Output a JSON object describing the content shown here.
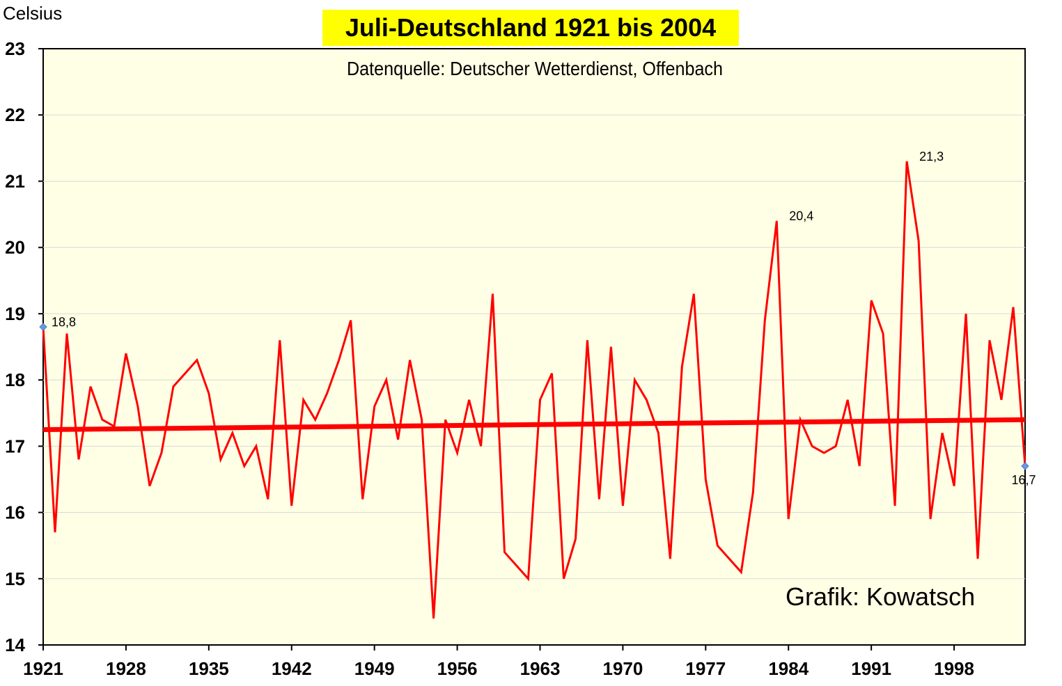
{
  "chart_data": {
    "type": "line",
    "title": "Juli-Deutschland  1921 bis 2004",
    "subtitle": "Datenquelle: Deutscher Wetterdienst, Offenbach",
    "ylabel": "Celsius",
    "xlabel": "",
    "credit": "Grafik: Kowatsch",
    "ylim": [
      14,
      23
    ],
    "xlim": [
      1921,
      2004
    ],
    "yticks": [
      14,
      15,
      16,
      17,
      18,
      19,
      20,
      21,
      22,
      23
    ],
    "xticks": [
      1921,
      1928,
      1935,
      1942,
      1949,
      1956,
      1963,
      1970,
      1977,
      1984,
      1991,
      1998
    ],
    "grid": true,
    "colors": {
      "line": "#ff0000",
      "trend": "#ff0000",
      "plot_background": "#ffffe5",
      "title_background": "#ffff00",
      "marker": "#6a9ae0"
    },
    "series": [
      {
        "x": [
          1921,
          1922,
          1923,
          1924,
          1925,
          1926,
          1927,
          1928,
          1929,
          1930,
          1931,
          1932,
          1933,
          1934,
          1935,
          1936,
          1937,
          1938,
          1939,
          1940,
          1941,
          1942,
          1943,
          1944,
          1945,
          1946,
          1947,
          1948,
          1949,
          1950,
          1951,
          1952,
          1953,
          1954,
          1955,
          1956,
          1957,
          1958,
          1959,
          1960,
          1961,
          1962,
          1963,
          1964,
          1965,
          1966,
          1967,
          1968,
          1969,
          1970,
          1971,
          1972,
          1973,
          1974,
          1975,
          1976,
          1977,
          1978,
          1979,
          1980,
          1981,
          1982,
          1983,
          1984,
          1985,
          1986,
          1987,
          1988,
          1989,
          1990,
          1991,
          1992,
          1993,
          1994,
          1995,
          1996,
          1997,
          1998,
          1999,
          2000,
          2001,
          2002,
          2003,
          2004
        ],
        "values": [
          18.8,
          15.7,
          18.7,
          16.8,
          17.9,
          17.4,
          17.3,
          18.4,
          17.6,
          16.4,
          16.9,
          17.9,
          18.1,
          18.3,
          17.8,
          16.8,
          17.2,
          16.7,
          17.0,
          16.2,
          18.6,
          16.1,
          17.7,
          17.4,
          17.8,
          18.3,
          18.9,
          16.2,
          17.6,
          18.0,
          17.1,
          18.3,
          17.4,
          14.4,
          17.4,
          16.9,
          17.7,
          17.0,
          19.3,
          15.4,
          15.2,
          15.0,
          17.7,
          18.1,
          15.0,
          15.6,
          18.6,
          16.2,
          18.5,
          16.1,
          18.0,
          17.7,
          17.2,
          15.3,
          18.2,
          19.3,
          16.5,
          15.5,
          15.3,
          15.1,
          16.3,
          18.9,
          20.4,
          15.9,
          17.4,
          17.0,
          16.9,
          17.0,
          17.7,
          16.7,
          19.2,
          18.7,
          16.1,
          21.3,
          20.1,
          15.9,
          17.2,
          16.4,
          19.0,
          15.3,
          18.6,
          17.7,
          19.1,
          16.7
        ]
      }
    ],
    "trend": {
      "x": [
        1921,
        2004
      ],
      "values": [
        17.25,
        17.4
      ]
    },
    "annotations": [
      {
        "x": 1921,
        "y": 18.8,
        "label": "18,8",
        "marker": true
      },
      {
        "x": 1983,
        "y": 20.4,
        "label": "20,4",
        "marker": false
      },
      {
        "x": 1994,
        "y": 21.3,
        "label": "21,3",
        "marker": false
      },
      {
        "x": 2004,
        "y": 16.7,
        "label": "16,7",
        "marker": true
      }
    ]
  }
}
